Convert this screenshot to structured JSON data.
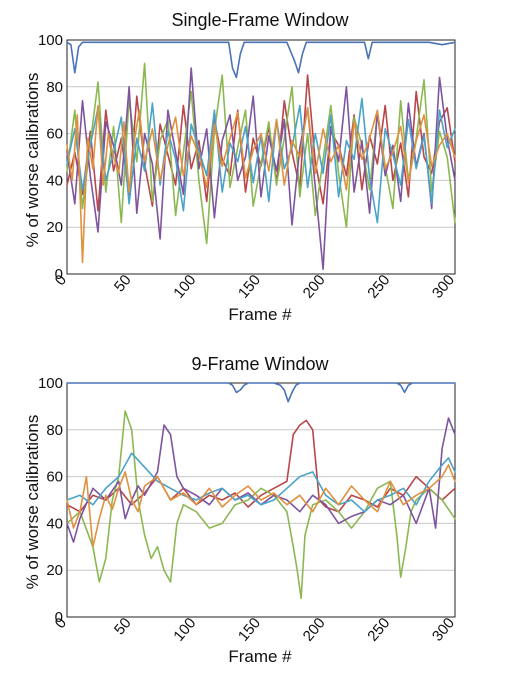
{
  "chart_data": [
    {
      "type": "line",
      "title": "Single-Frame Window",
      "xlabel": "Frame #",
      "ylabel": "% of worse calibrations",
      "xlim": [
        0,
        300
      ],
      "ylim": [
        0,
        100
      ],
      "xticks": [
        0,
        50,
        100,
        150,
        200,
        250,
        300
      ],
      "yticks": [
        0,
        20,
        40,
        60,
        80,
        100
      ],
      "grid": true,
      "series": [
        {
          "color": "#4a72b8",
          "x": [
            0,
            3,
            6,
            9,
            12,
            20,
            60,
            100,
            125,
            128,
            131,
            134,
            137,
            140,
            150,
            160,
            170,
            176,
            179,
            182,
            185,
            188,
            200,
            220,
            230,
            233,
            236,
            240,
            260,
            270,
            280,
            290,
            300
          ],
          "y": [
            99,
            98,
            86,
            97,
            99,
            99,
            99,
            99,
            99,
            88,
            84,
            94,
            99,
            99,
            99,
            99,
            99,
            91,
            86,
            94,
            99,
            99,
            99,
            99,
            99,
            92,
            99,
            99,
            99,
            99,
            99,
            98,
            99
          ]
        },
        {
          "color": "#b8464b",
          "x": [
            0,
            6,
            12,
            18,
            24,
            30,
            36,
            42,
            48,
            54,
            60,
            66,
            72,
            78,
            84,
            90,
            96,
            102,
            108,
            114,
            120,
            126,
            132,
            138,
            144,
            150,
            156,
            162,
            168,
            174,
            180,
            186,
            192,
            198,
            204,
            210,
            216,
            222,
            228,
            234,
            240,
            246,
            252,
            258,
            264,
            270,
            276,
            282,
            288,
            294,
            300
          ],
          "y": [
            38,
            52,
            34,
            61,
            27,
            70,
            44,
            58,
            33,
            76,
            47,
            29,
            64,
            51,
            38,
            72,
            45,
            57,
            31,
            66,
            49,
            42,
            70,
            35,
            58,
            46,
            63,
            39,
            74,
            52,
            37,
            85,
            48,
            30,
            61,
            55,
            42,
            68,
            36,
            59,
            47,
            72,
            40,
            56,
            33,
            78,
            50,
            43,
            65,
            71,
            48
          ]
        },
        {
          "color": "#8cb852",
          "x": [
            0,
            6,
            12,
            18,
            24,
            30,
            36,
            42,
            48,
            54,
            60,
            66,
            72,
            78,
            84,
            90,
            96,
            102,
            108,
            114,
            120,
            126,
            132,
            138,
            144,
            150,
            156,
            162,
            168,
            174,
            180,
            186,
            192,
            198,
            204,
            210,
            216,
            222,
            228,
            234,
            240,
            246,
            252,
            258,
            264,
            270,
            276,
            282,
            288,
            294,
            300
          ],
          "y": [
            44,
            70,
            28,
            56,
            82,
            35,
            63,
            22,
            75,
            48,
            90,
            31,
            57,
            66,
            25,
            52,
            78,
            40,
            13,
            61,
            85,
            37,
            54,
            70,
            29,
            47,
            65,
            38,
            58,
            80,
            33,
            60,
            25,
            49,
            72,
            43,
            20,
            67,
            55,
            36,
            69,
            46,
            28,
            74,
            40,
            58,
            83,
            35,
            61,
            50,
            22
          ]
        },
        {
          "color": "#7e549f",
          "x": [
            0,
            6,
            12,
            18,
            24,
            30,
            36,
            42,
            48,
            54,
            60,
            66,
            72,
            78,
            84,
            90,
            96,
            102,
            108,
            114,
            120,
            126,
            132,
            138,
            144,
            150,
            156,
            162,
            168,
            174,
            180,
            186,
            192,
            198,
            204,
            210,
            216,
            222,
            228,
            234,
            240,
            246,
            252,
            258,
            264,
            270,
            276,
            282,
            288,
            294,
            300
          ],
          "y": [
            52,
            30,
            74,
            42,
            18,
            65,
            55,
            38,
            80,
            26,
            60,
            47,
            15,
            70,
            52,
            34,
            88,
            45,
            62,
            24,
            57,
            68,
            40,
            50,
            76,
            33,
            59,
            44,
            66,
            21,
            54,
            71,
            37,
            2,
            63,
            48,
            80,
            35,
            57,
            26,
            69,
            42,
            55,
            31,
            73,
            46,
            60,
            28,
            84,
            58,
            40
          ]
        },
        {
          "color": "#4aa3c8",
          "x": [
            0,
            6,
            12,
            18,
            24,
            30,
            36,
            42,
            48,
            54,
            60,
            66,
            72,
            78,
            84,
            90,
            96,
            102,
            108,
            114,
            120,
            126,
            132,
            138,
            144,
            150,
            156,
            162,
            168,
            174,
            180,
            186,
            192,
            198,
            204,
            210,
            216,
            222,
            228,
            234,
            240,
            246,
            252,
            258,
            264,
            270,
            276,
            282,
            288,
            294,
            300
          ],
          "y": [
            47,
            62,
            36,
            55,
            71,
            40,
            52,
            67,
            30,
            58,
            44,
            73,
            38,
            61,
            49,
            27,
            64,
            53,
            42,
            70,
            35,
            56,
            48,
            63,
            39,
            59,
            31,
            66,
            45,
            54,
            72,
            37,
            60,
            43,
            68,
            33,
            57,
            49,
            75,
            41,
            22,
            62,
            51,
            38,
            66,
            45,
            59,
            30,
            70,
            54,
            62
          ]
        },
        {
          "color": "#e0913e",
          "x": [
            0,
            4,
            8,
            12,
            16,
            20,
            24,
            28,
            32,
            36,
            40,
            44,
            48,
            52,
            56,
            60,
            66,
            72,
            78,
            84,
            90,
            96,
            102,
            108,
            114,
            120,
            126,
            132,
            138,
            144,
            150,
            156,
            162,
            168,
            174,
            180,
            186,
            192,
            198,
            204,
            210,
            216,
            222,
            228,
            234,
            240,
            246,
            252,
            258,
            264,
            270,
            276,
            282,
            288,
            294,
            300
          ],
          "y": [
            55,
            40,
            68,
            5,
            58,
            45,
            72,
            38,
            60,
            50,
            43,
            65,
            35,
            57,
            70,
            48,
            62,
            40,
            55,
            67,
            42,
            59,
            51,
            37,
            64,
            46,
            58,
            69,
            41,
            53,
            60,
            44,
            66,
            38,
            57,
            50,
            71,
            43,
            62,
            48,
            55,
            36,
            65,
            49,
            58,
            70,
            45,
            52,
            63,
            39,
            57,
            68,
            46,
            55,
            60,
            50
          ]
        }
      ]
    },
    {
      "type": "line",
      "title": "9-Frame Window",
      "xlabel": "Frame #",
      "ylabel": "% of worse calibrations",
      "xlim": [
        0,
        300
      ],
      "ylim": [
        0,
        100
      ],
      "xticks": [
        0,
        50,
        100,
        150,
        200,
        250,
        300
      ],
      "yticks": [
        0,
        20,
        40,
        60,
        80,
        100
      ],
      "grid": true,
      "series": [
        {
          "color": "#4a72b8",
          "x": [
            0,
            50,
            100,
            125,
            128,
            131,
            134,
            137,
            140,
            160,
            165,
            168,
            171,
            174,
            177,
            180,
            200,
            240,
            255,
            258,
            261,
            264,
            267,
            270,
            300
          ],
          "y": [
            100,
            100,
            100,
            100,
            99,
            96,
            97,
            99,
            100,
            100,
            99,
            97,
            92,
            96,
            99,
            100,
            100,
            100,
            100,
            99,
            96,
            99,
            100,
            100,
            100
          ]
        },
        {
          "color": "#b8464b",
          "x": [
            0,
            10,
            20,
            30,
            40,
            50,
            60,
            70,
            80,
            90,
            100,
            110,
            120,
            130,
            140,
            150,
            160,
            170,
            175,
            180,
            185,
            190,
            195,
            200,
            210,
            220,
            230,
            240,
            250,
            260,
            270,
            280,
            290,
            300
          ],
          "y": [
            48,
            45,
            52,
            50,
            55,
            48,
            53,
            60,
            50,
            55,
            48,
            52,
            50,
            53,
            47,
            52,
            55,
            58,
            78,
            82,
            84,
            80,
            50,
            47,
            45,
            52,
            50,
            47,
            55,
            52,
            60,
            55,
            50,
            55
          ]
        },
        {
          "color": "#8cb852",
          "x": [
            0,
            10,
            20,
            25,
            30,
            35,
            40,
            45,
            50,
            55,
            60,
            65,
            70,
            75,
            80,
            85,
            90,
            100,
            110,
            120,
            130,
            140,
            150,
            160,
            170,
            175,
            178,
            181,
            184,
            190,
            200,
            210,
            220,
            230,
            240,
            250,
            255,
            258,
            262,
            266,
            270,
            280,
            290,
            300
          ],
          "y": [
            40,
            45,
            30,
            15,
            25,
            50,
            60,
            88,
            80,
            50,
            35,
            25,
            30,
            20,
            15,
            40,
            48,
            45,
            38,
            40,
            48,
            50,
            55,
            52,
            45,
            30,
            20,
            8,
            35,
            48,
            50,
            45,
            38,
            45,
            55,
            58,
            35,
            17,
            30,
            45,
            50,
            55,
            50,
            42
          ]
        },
        {
          "color": "#7e549f",
          "x": [
            0,
            5,
            10,
            20,
            30,
            40,
            45,
            50,
            55,
            60,
            70,
            75,
            80,
            85,
            90,
            100,
            110,
            120,
            130,
            140,
            150,
            160,
            170,
            180,
            190,
            200,
            210,
            220,
            230,
            240,
            250,
            260,
            270,
            280,
            285,
            290,
            295,
            300
          ],
          "y": [
            40,
            32,
            42,
            55,
            50,
            58,
            42,
            50,
            56,
            52,
            62,
            82,
            78,
            60,
            55,
            52,
            48,
            55,
            50,
            53,
            48,
            52,
            50,
            45,
            52,
            48,
            40,
            43,
            45,
            50,
            48,
            52,
            40,
            55,
            38,
            72,
            85,
            78
          ]
        },
        {
          "color": "#4aa3c8",
          "x": [
            0,
            10,
            20,
            30,
            40,
            50,
            60,
            70,
            80,
            90,
            100,
            110,
            120,
            130,
            140,
            150,
            160,
            170,
            180,
            190,
            200,
            210,
            220,
            230,
            240,
            250,
            260,
            270,
            280,
            290,
            295,
            300
          ],
          "y": [
            50,
            52,
            48,
            55,
            60,
            70,
            64,
            58,
            55,
            52,
            50,
            53,
            55,
            50,
            52,
            48,
            50,
            55,
            60,
            62,
            52,
            48,
            50,
            45,
            50,
            52,
            55,
            48,
            58,
            65,
            68,
            62
          ]
        },
        {
          "color": "#e0913e",
          "x": [
            0,
            5,
            10,
            15,
            20,
            25,
            30,
            35,
            40,
            45,
            50,
            55,
            60,
            70,
            80,
            90,
            100,
            110,
            120,
            130,
            140,
            150,
            160,
            170,
            180,
            190,
            200,
            210,
            220,
            230,
            240,
            250,
            260,
            270,
            280,
            290,
            295,
            300
          ],
          "y": [
            50,
            38,
            45,
            60,
            30,
            42,
            52,
            46,
            55,
            62,
            50,
            45,
            56,
            60,
            50,
            53,
            48,
            55,
            47,
            52,
            56,
            50,
            53,
            48,
            52,
            45,
            55,
            48,
            56,
            50,
            45,
            58,
            48,
            52,
            55,
            60,
            65,
            58
          ]
        }
      ]
    }
  ]
}
